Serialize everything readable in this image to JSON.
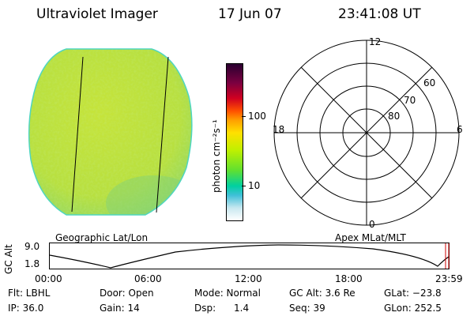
{
  "header": {
    "title": "Ultraviolet Imager",
    "date": "17 Jun 07",
    "time": "23:41:08 UT"
  },
  "left_panel": {
    "caption": "Geographic Lat/Lon"
  },
  "colorbar": {
    "unit_label": "photon cm⁻²s⁻¹",
    "ticks": [
      "100",
      "10"
    ],
    "colors": [
      "#2a0030",
      "#7a0040",
      "#d00020",
      "#ff5000",
      "#ffa000",
      "#ffe000",
      "#b8f000",
      "#20e020",
      "#00d0a0",
      "#40c0d8",
      "#c8e8f0",
      "#ffffff"
    ]
  },
  "polar_plot": {
    "caption": "Apex MLat/MLT",
    "mlt_labels": {
      "top": "12",
      "bottom": "0",
      "left": "18",
      "right": "6"
    },
    "lat_labels": [
      "80",
      "70",
      "60"
    ]
  },
  "altitude_strip": {
    "axis_label": "GC Alt",
    "y_ticks": [
      "9.0",
      "1.8"
    ],
    "x_ticks": [
      "00:00",
      "06:00",
      "12:00",
      "18:00",
      "23:59"
    ]
  },
  "info": {
    "flt": "Flt: LBHL",
    "ip": "IP: 36.0",
    "door": "Door: Open",
    "gain": "Gain: 14",
    "mode": "Mode: Normal",
    "dsp": "Dsp:      1.4",
    "gc_alt": "GC Alt: 3.6 Re",
    "seq": "Seq: 39",
    "glat": "GLat: −23.8",
    "glon": "GLon: 252.5"
  },
  "colors": {
    "disk_base": "#bde03c",
    "disk_rim": "#4fd6c0",
    "marker": "#cc0000"
  }
}
